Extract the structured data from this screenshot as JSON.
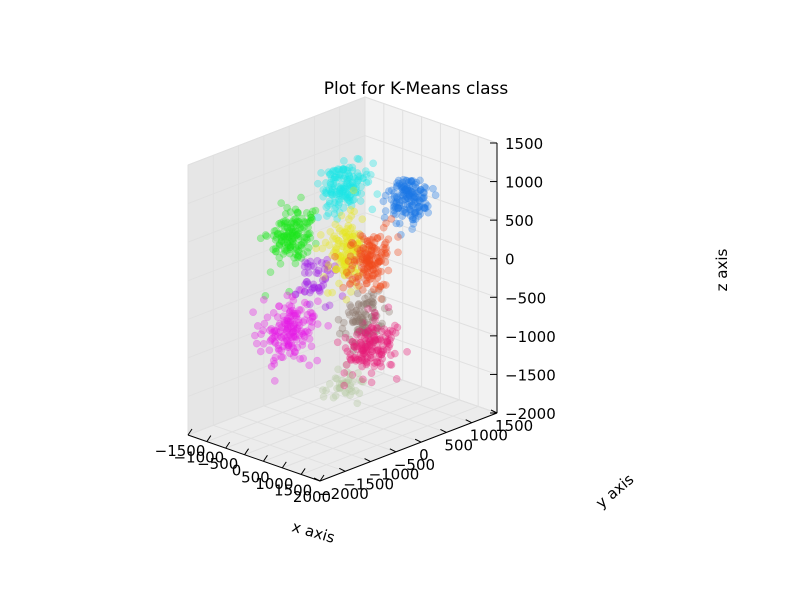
{
  "chart_data": {
    "type": "scatter",
    "projection": "3d",
    "title": "Plot for K-Means class",
    "xlabel": "x axis",
    "ylabel": "y axis",
    "zlabel": "z axis",
    "xlim": [
      -1500,
      2000
    ],
    "ylim": [
      -2000,
      1500
    ],
    "zlim": [
      -2000,
      1500
    ],
    "x_ticks": [
      "−1500",
      "−1000",
      "−500",
      "0",
      "500",
      "1000",
      "1500",
      "2000"
    ],
    "y_ticks": [
      "−2000",
      "−1500",
      "−1000",
      "−500",
      "0",
      "500",
      "1000",
      "1500"
    ],
    "z_ticks": [
      "−2000",
      "−1500",
      "−1000",
      "−500",
      "0",
      "500",
      "1000",
      "1500"
    ],
    "grid": true,
    "legend": "none",
    "marker_alpha": 0.35,
    "clusters": [
      {
        "color": "#1ee61e",
        "center": [
          -1150,
          -200,
          200
        ],
        "spread": [
          260,
          420,
          320
        ],
        "count": 150
      },
      {
        "color": "#1ee6e6",
        "center": [
          -450,
          300,
          800
        ],
        "spread": [
          300,
          320,
          260
        ],
        "count": 150
      },
      {
        "color": "#e61ee6",
        "center": [
          -300,
          -900,
          -700
        ],
        "spread": [
          380,
          420,
          320
        ],
        "count": 160
      },
      {
        "color": "#e6e61e",
        "center": [
          150,
          -100,
          150
        ],
        "spread": [
          300,
          320,
          380
        ],
        "count": 140
      },
      {
        "color": "#1e78e6",
        "center": [
          800,
          650,
          800
        ],
        "spread": [
          300,
          320,
          260
        ],
        "count": 150
      },
      {
        "color": "#f04b1e",
        "center": [
          800,
          -100,
          200
        ],
        "spread": [
          300,
          350,
          300
        ],
        "count": 150
      },
      {
        "color": "#e61e78",
        "center": [
          1200,
          -400,
          -800
        ],
        "spread": [
          320,
          380,
          320
        ],
        "count": 150
      },
      {
        "color": "#8c786e",
        "center": [
          900,
          -300,
          -500
        ],
        "spread": [
          260,
          320,
          280
        ],
        "count": 90
      },
      {
        "color": "#b4c8a0",
        "center": [
          800,
          -600,
          -1300
        ],
        "spread": [
          280,
          300,
          200
        ],
        "count": 40
      },
      {
        "color": "#a01ee6",
        "center": [
          -200,
          -400,
          -200
        ],
        "spread": [
          300,
          300,
          300
        ],
        "count": 50
      }
    ]
  }
}
